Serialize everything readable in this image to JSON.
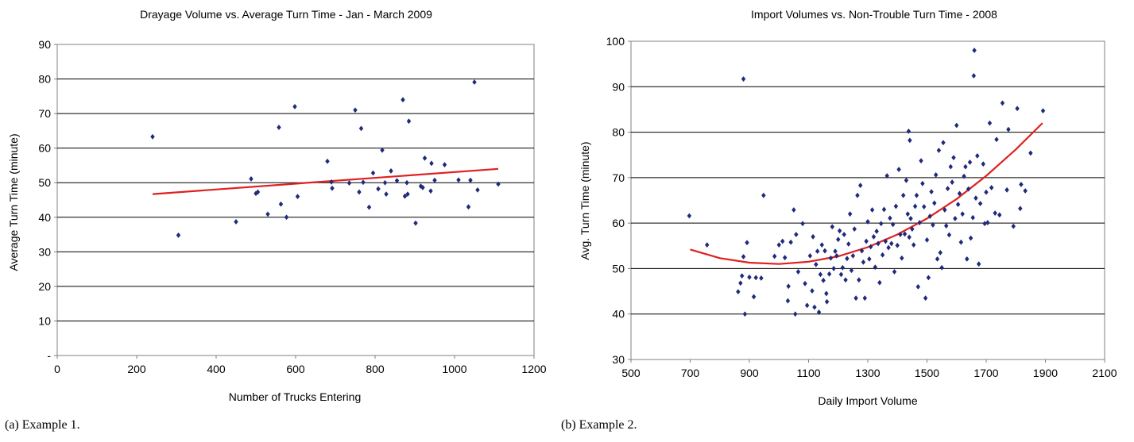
{
  "chart_data": [
    {
      "type": "scatter",
      "title": "Drayage Volume vs. Average Turn Time - Jan - March 2009",
      "xlabel": "Number of Trucks Entering",
      "ylabel": "Average Turn Time (minute)",
      "xlim": [
        0,
        1200
      ],
      "ylim": [
        0,
        90
      ],
      "x_ticks": [
        "0",
        "200",
        "400",
        "600",
        "800",
        "1000",
        "1200"
      ],
      "y_ticks": [
        "-",
        "10",
        "20",
        "30",
        "40",
        "50",
        "60",
        "70",
        "80",
        "90"
      ],
      "grid": "horizontal",
      "marker_color": "#1f2a7a",
      "trend_color": "#e02020",
      "trendline": {
        "type": "linear",
        "x": [
          240,
          1110
        ],
        "y": [
          46.7,
          54.0
        ]
      },
      "points": [
        [
          240,
          63.3
        ],
        [
          305,
          34.8
        ],
        [
          450,
          38.7
        ],
        [
          488,
          51.1
        ],
        [
          500,
          46.9
        ],
        [
          505,
          47.3
        ],
        [
          530,
          40.9
        ],
        [
          558,
          66.0
        ],
        [
          563,
          43.8
        ],
        [
          577,
          40.0
        ],
        [
          598,
          72.0
        ],
        [
          605,
          46.0
        ],
        [
          680,
          56.2
        ],
        [
          690,
          50.2
        ],
        [
          692,
          48.4
        ],
        [
          735,
          49.9
        ],
        [
          750,
          71.0
        ],
        [
          760,
          47.3
        ],
        [
          765,
          65.7
        ],
        [
          770,
          50.1
        ],
        [
          785,
          42.9
        ],
        [
          795,
          52.8
        ],
        [
          808,
          48.2
        ],
        [
          818,
          59.4
        ],
        [
          825,
          50.0
        ],
        [
          828,
          46.7
        ],
        [
          840,
          53.4
        ],
        [
          855,
          50.6
        ],
        [
          870,
          74.0
        ],
        [
          875,
          46.1
        ],
        [
          880,
          50.0
        ],
        [
          882,
          46.7
        ],
        [
          885,
          67.8
        ],
        [
          902,
          38.3
        ],
        [
          915,
          49.0
        ],
        [
          920,
          48.6
        ],
        [
          925,
          57.1
        ],
        [
          940,
          47.6
        ],
        [
          942,
          55.6
        ],
        [
          950,
          50.7
        ],
        [
          975,
          55.2
        ],
        [
          1010,
          50.8
        ],
        [
          1035,
          43.0
        ],
        [
          1040,
          50.7
        ],
        [
          1050,
          79.1
        ],
        [
          1058,
          47.9
        ],
        [
          1110,
          49.6
        ]
      ],
      "caption": "(a) Example 1."
    },
    {
      "type": "scatter",
      "title": "Import Volumes vs. Non-Trouble Turn Time - 2008",
      "xlabel": "Daily Import Volume",
      "ylabel": "Avg. Turn Time (minute)",
      "xlim": [
        500,
        2100
      ],
      "ylim": [
        30,
        100
      ],
      "x_ticks": [
        "500",
        "700",
        "900",
        "1100",
        "1300",
        "1500",
        "1700",
        "1900",
        "2100"
      ],
      "y_ticks": [
        "30",
        "40",
        "50",
        "60",
        "70",
        "80",
        "90",
        "100"
      ],
      "grid": "horizontal",
      "marker_color": "#1f2a7a",
      "trend_color": "#e02020",
      "trendline": {
        "type": "polynomial",
        "x": [
          700,
          800,
          900,
          1000,
          1100,
          1200,
          1300,
          1400,
          1500,
          1600,
          1700,
          1800,
          1890
        ],
        "y": [
          54.2,
          52.3,
          51.3,
          51.0,
          51.5,
          52.7,
          54.7,
          57.5,
          61.0,
          65.3,
          70.4,
          76.2,
          82.0
        ]
      },
      "points": [
        [
          697,
          61.6
        ],
        [
          757,
          55.2
        ],
        [
          880,
          91.7
        ],
        [
          862,
          44.9
        ],
        [
          870,
          46.8
        ],
        [
          880,
          52.6
        ],
        [
          875,
          48.4
        ],
        [
          885,
          40.0
        ],
        [
          892,
          55.7
        ],
        [
          900,
          48.1
        ],
        [
          915,
          43.8
        ],
        [
          922,
          48.0
        ],
        [
          940,
          47.9
        ],
        [
          948,
          66.1
        ],
        [
          985,
          52.7
        ],
        [
          1000,
          55.2
        ],
        [
          1012,
          56.0
        ],
        [
          1020,
          52.4
        ],
        [
          1030,
          42.9
        ],
        [
          1032,
          46.1
        ],
        [
          1040,
          55.8
        ],
        [
          1050,
          62.9
        ],
        [
          1058,
          57.5
        ],
        [
          1055,
          40.0
        ],
        [
          1065,
          49.3
        ],
        [
          1080,
          59.9
        ],
        [
          1088,
          46.7
        ],
        [
          1095,
          41.9
        ],
        [
          1105,
          52.8
        ],
        [
          1112,
          45.1
        ],
        [
          1115,
          57.0
        ],
        [
          1120,
          41.5
        ],
        [
          1125,
          50.9
        ],
        [
          1130,
          53.8
        ],
        [
          1135,
          40.4
        ],
        [
          1140,
          48.7
        ],
        [
          1145,
          55.2
        ],
        [
          1150,
          47.4
        ],
        [
          1155,
          53.9
        ],
        [
          1160,
          44.5
        ],
        [
          1162,
          42.7
        ],
        [
          1170,
          48.8
        ],
        [
          1175,
          52.3
        ],
        [
          1180,
          59.2
        ],
        [
          1185,
          50.0
        ],
        [
          1190,
          53.8
        ],
        [
          1195,
          52.8
        ],
        [
          1200,
          56.4
        ],
        [
          1205,
          58.3
        ],
        [
          1210,
          48.7
        ],
        [
          1215,
          50.2
        ],
        [
          1220,
          57.5
        ],
        [
          1225,
          47.5
        ],
        [
          1230,
          52.2
        ],
        [
          1235,
          55.4
        ],
        [
          1240,
          62.0
        ],
        [
          1245,
          49.6
        ],
        [
          1250,
          52.8
        ],
        [
          1255,
          58.7
        ],
        [
          1260,
          43.5
        ],
        [
          1265,
          66.1
        ],
        [
          1270,
          47.5
        ],
        [
          1275,
          68.3
        ],
        [
          1280,
          53.9
        ],
        [
          1285,
          51.4
        ],
        [
          1290,
          43.5
        ],
        [
          1295,
          56.0
        ],
        [
          1300,
          60.3
        ],
        [
          1305,
          52.1
        ],
        [
          1310,
          54.8
        ],
        [
          1315,
          62.9
        ],
        [
          1320,
          57.0
        ],
        [
          1325,
          50.3
        ],
        [
          1330,
          58.2
        ],
        [
          1335,
          55.5
        ],
        [
          1340,
          46.9
        ],
        [
          1345,
          59.9
        ],
        [
          1350,
          53.0
        ],
        [
          1355,
          63.0
        ],
        [
          1360,
          56.0
        ],
        [
          1365,
          70.4
        ],
        [
          1370,
          54.6
        ],
        [
          1375,
          61.1
        ],
        [
          1380,
          55.5
        ],
        [
          1385,
          59.7
        ],
        [
          1390,
          49.3
        ],
        [
          1395,
          63.7
        ],
        [
          1400,
          55.1
        ],
        [
          1405,
          71.8
        ],
        [
          1410,
          57.5
        ],
        [
          1415,
          52.3
        ],
        [
          1420,
          66.1
        ],
        [
          1425,
          57.6
        ],
        [
          1430,
          69.4
        ],
        [
          1435,
          62.0
        ],
        [
          1440,
          56.9
        ],
        [
          1438,
          80.2
        ],
        [
          1442,
          78.2
        ],
        [
          1445,
          61.0
        ],
        [
          1450,
          58.7
        ],
        [
          1455,
          55.2
        ],
        [
          1460,
          63.7
        ],
        [
          1465,
          66.1
        ],
        [
          1470,
          46.0
        ],
        [
          1475,
          60.1
        ],
        [
          1480,
          73.7
        ],
        [
          1485,
          68.7
        ],
        [
          1490,
          63.6
        ],
        [
          1495,
          43.5
        ],
        [
          1500,
          56.3
        ],
        [
          1505,
          48.0
        ],
        [
          1510,
          61.5
        ],
        [
          1515,
          66.9
        ],
        [
          1520,
          59.6
        ],
        [
          1525,
          64.4
        ],
        [
          1530,
          70.6
        ],
        [
          1535,
          52.1
        ],
        [
          1540,
          76.0
        ],
        [
          1545,
          53.5
        ],
        [
          1550,
          50.2
        ],
        [
          1555,
          77.7
        ],
        [
          1560,
          62.9
        ],
        [
          1565,
          59.4
        ],
        [
          1570,
          67.6
        ],
        [
          1575,
          57.4
        ],
        [
          1580,
          72.4
        ],
        [
          1585,
          69.0
        ],
        [
          1590,
          74.4
        ],
        [
          1595,
          61.0
        ],
        [
          1600,
          81.5
        ],
        [
          1605,
          64.1
        ],
        [
          1610,
          66.5
        ],
        [
          1615,
          55.8
        ],
        [
          1620,
          62.0
        ],
        [
          1625,
          70.3
        ],
        [
          1630,
          72.4
        ],
        [
          1635,
          52.1
        ],
        [
          1640,
          67.5
        ],
        [
          1645,
          73.4
        ],
        [
          1648,
          56.7
        ],
        [
          1655,
          61.2
        ],
        [
          1660,
          98.0
        ],
        [
          1658,
          92.4
        ],
        [
          1665,
          65.5
        ],
        [
          1670,
          74.8
        ],
        [
          1675,
          51.0
        ],
        [
          1680,
          64.3
        ],
        [
          1690,
          73.0
        ],
        [
          1695,
          59.9
        ],
        [
          1700,
          66.8
        ],
        [
          1705,
          60.1
        ],
        [
          1712,
          82.0
        ],
        [
          1718,
          67.8
        ],
        [
          1730,
          62.2
        ],
        [
          1735,
          78.4
        ],
        [
          1745,
          61.8
        ],
        [
          1755,
          86.4
        ],
        [
          1770,
          67.3
        ],
        [
          1775,
          80.6
        ],
        [
          1792,
          59.3
        ],
        [
          1805,
          85.2
        ],
        [
          1815,
          63.2
        ],
        [
          1818,
          68.5
        ],
        [
          1832,
          67.1
        ],
        [
          1850,
          75.4
        ],
        [
          1892,
          84.7
        ]
      ],
      "caption": "(b) Example 2."
    }
  ]
}
